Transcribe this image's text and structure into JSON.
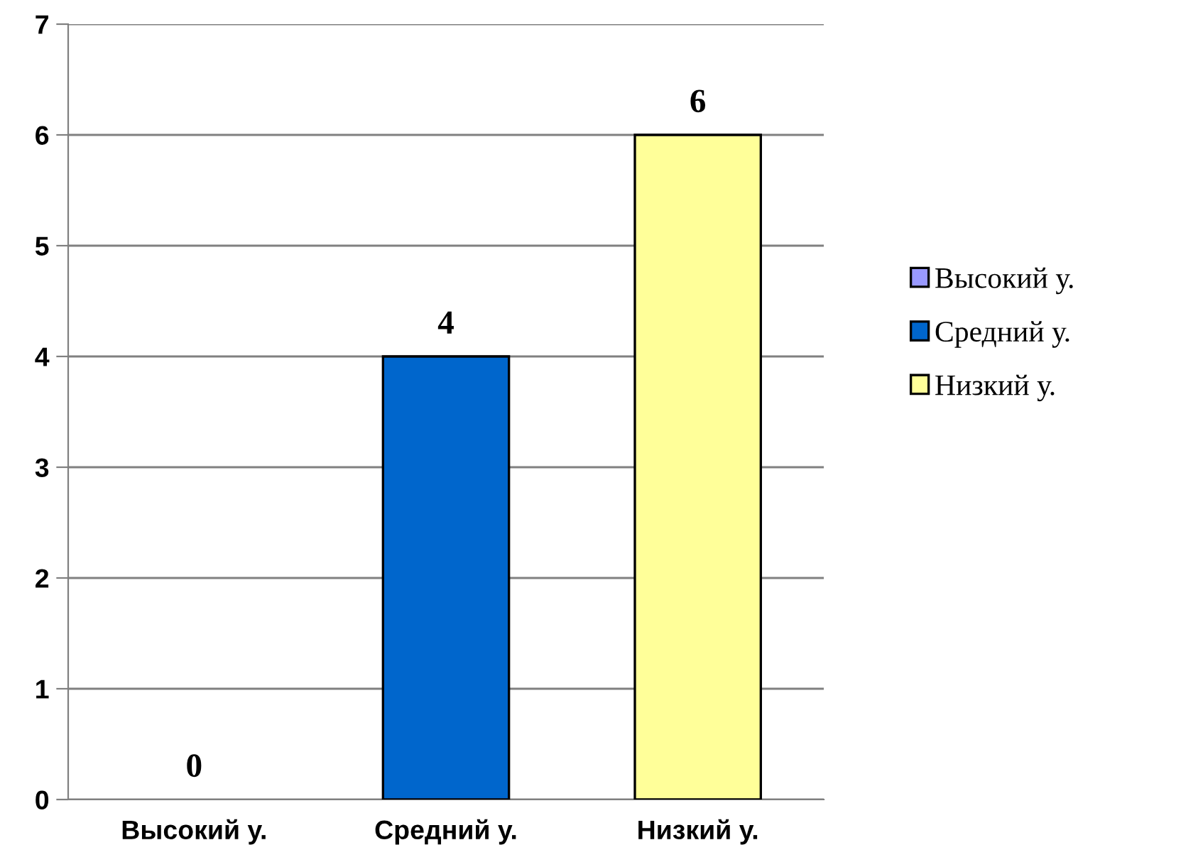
{
  "chart_data": {
    "type": "bar",
    "categories": [
      "Высокий у.",
      "Средний у.",
      "Низкий у."
    ],
    "series": [
      {
        "name": "Высокий у.",
        "color": "#9999ff",
        "values": [
          0,
          null,
          null
        ]
      },
      {
        "name": "Средний у.",
        "color": "#0066cc",
        "values": [
          null,
          4,
          null
        ]
      },
      {
        "name": "Низкий у.",
        "color": "#ffff99",
        "values": [
          null,
          null,
          6
        ]
      }
    ],
    "ylim": [
      0,
      7
    ],
    "yticks": [
      0,
      1,
      2,
      3,
      4,
      5,
      6,
      7
    ],
    "grid": "y",
    "legend": "right",
    "data_labels": true
  }
}
